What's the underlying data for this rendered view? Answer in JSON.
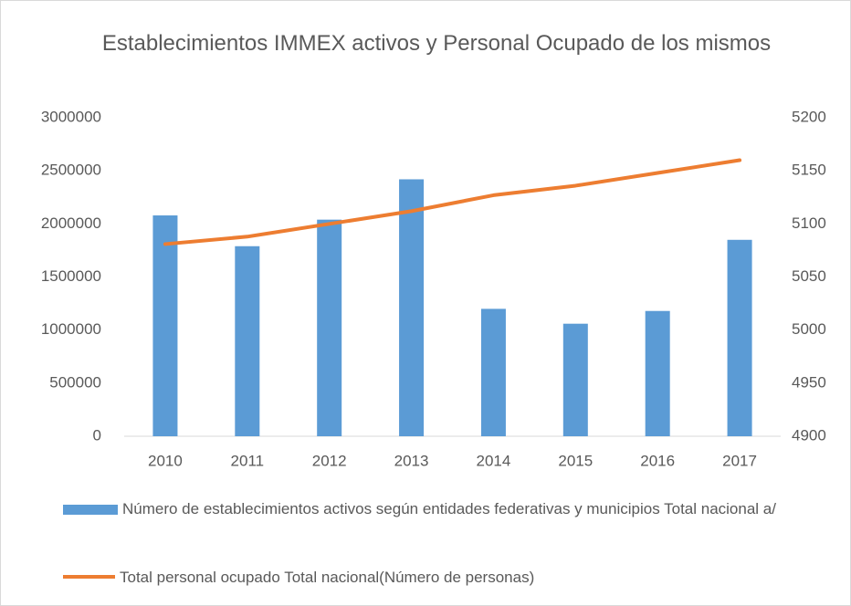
{
  "chart_data": {
    "type": "bar+line",
    "title": "Establecimientos IMMEX activos y Personal Ocupado de los mismos",
    "categories": [
      "2010",
      "2011",
      "2012",
      "2013",
      "2014",
      "2015",
      "2016",
      "2017"
    ],
    "series": [
      {
        "name": "Número de establecimientos activos según entidades federativas y municipios Total nacional a/",
        "type": "bar",
        "color": "#5b9bd5",
        "values": [
          2080000,
          1790000,
          2040000,
          2420000,
          1200000,
          1060000,
          1180000,
          1850000
        ]
      },
      {
        "name": "Total personal ocupado Total nacional(Número de personas)",
        "type": "line",
        "axis": "y2",
        "color": "#ed7d31",
        "values": [
          5081,
          5088,
          5100,
          5112,
          5127,
          5136,
          5148,
          5160
        ]
      }
    ],
    "ylim": [
      0,
      3000000
    ],
    "yticks": [
      0,
      500000,
      1000000,
      1500000,
      2000000,
      2500000,
      3000000
    ],
    "y2lim": [
      4900,
      5200
    ],
    "y2ticks": [
      4900,
      4950,
      5000,
      5050,
      5100,
      5150,
      5200
    ],
    "grid": false,
    "legend": "bottom"
  }
}
